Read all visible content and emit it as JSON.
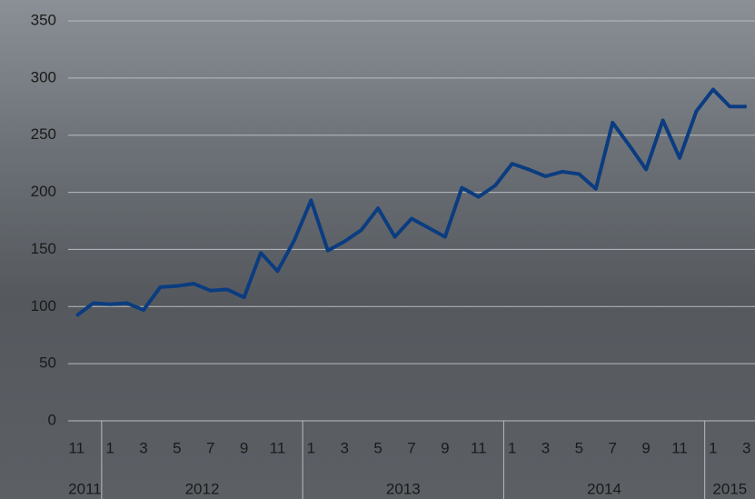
{
  "chart_data": {
    "type": "line",
    "groups": [
      {
        "label": "2011",
        "categories": [
          "11",
          null
        ]
      },
      {
        "label": "2012",
        "categories": [
          "1",
          null,
          "3",
          null,
          "5",
          null,
          "7",
          null,
          "9",
          null,
          "11",
          null
        ]
      },
      {
        "label": "2013",
        "categories": [
          "1",
          null,
          "3",
          null,
          "5",
          null,
          "7",
          null,
          "9",
          null,
          "11",
          null
        ]
      },
      {
        "label": "2014",
        "categories": [
          "1",
          null,
          "3",
          null,
          "5",
          null,
          "7",
          null,
          "9",
          null,
          "11",
          null
        ]
      },
      {
        "label": "2015",
        "categories": [
          "1",
          null,
          "3"
        ]
      }
    ],
    "series": [
      {
        "color": "#0b3c80",
        "values": [
          92,
          103,
          102,
          103,
          97,
          117,
          118,
          120,
          114,
          115,
          108,
          147,
          131,
          158,
          193,
          149,
          157,
          167,
          186,
          161,
          177,
          169,
          161,
          204,
          196,
          206,
          225,
          220,
          214,
          218,
          216,
          203,
          261,
          241,
          220,
          263,
          230,
          271,
          290,
          275,
          275
        ]
      }
    ],
    "ylim": [
      0,
      350
    ],
    "yticks": [
      0,
      50,
      100,
      150,
      200,
      250,
      300,
      350
    ],
    "grid": true
  }
}
